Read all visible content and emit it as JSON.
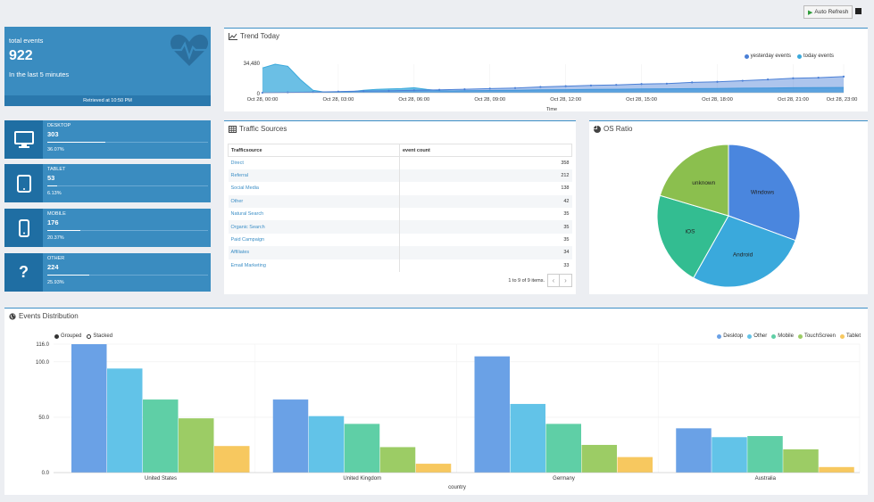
{
  "toolbar": {
    "auto_refresh_label": "Auto Refresh"
  },
  "summary": {
    "title": "total events",
    "value": "922",
    "subtitle": "In the last 5 minutes",
    "retrieved": "Retrieved at 10:50 PM"
  },
  "devices": [
    {
      "label": "DESKTOP",
      "value": "303",
      "percent_label": "36.07%",
      "fraction": 0.3607,
      "icon": "desktop-icon"
    },
    {
      "label": "TABLET",
      "value": "53",
      "percent_label": "6.13%",
      "fraction": 0.0613,
      "icon": "tablet-icon"
    },
    {
      "label": "MOBILE",
      "value": "176",
      "percent_label": "20.37%",
      "fraction": 0.2037,
      "icon": "mobile-icon"
    },
    {
      "label": "OTHER",
      "value": "224",
      "percent_label": "25.93%",
      "fraction": 0.2593,
      "icon": "question-icon"
    }
  ],
  "trend": {
    "title": "Trend Today",
    "legend": [
      "yesterday events",
      "today events"
    ],
    "y_tick": "34,480",
    "y_zero": "0",
    "x_label": "Time",
    "x_ticks": [
      "Oct 28, 00:00",
      "Oct 28, 03:00",
      "Oct 28, 06:00",
      "Oct 28, 09:00",
      "Oct 28, 12:00",
      "Oct 28, 15:00",
      "Oct 28, 18:00",
      "Oct 28, 21:00",
      "Oct 28, 23:00"
    ]
  },
  "traffic": {
    "title": "Traffic Sources",
    "headers": [
      "Trafficsource",
      "event count"
    ],
    "rows": [
      {
        "source": "Direct",
        "count": "358"
      },
      {
        "source": "Referral",
        "count": "212"
      },
      {
        "source": "Social Media",
        "count": "138"
      },
      {
        "source": "Other",
        "count": "42"
      },
      {
        "source": "Natural Search",
        "count": "35"
      },
      {
        "source": "Organic Search",
        "count": "35"
      },
      {
        "source": "Paid Campaign",
        "count": "35"
      },
      {
        "source": "Affiliates",
        "count": "34"
      },
      {
        "source": "Email Marketing",
        "count": "33"
      }
    ],
    "pagination": "1 to 9 of 9 items.",
    "prev": "‹",
    "next": "›"
  },
  "os": {
    "title": "OS Ratio"
  },
  "distribution": {
    "title": "Events Distribution",
    "modes": [
      "Grouped",
      "Stacked"
    ],
    "x_label": "country"
  },
  "colors": {
    "accent": "#3d8fc6",
    "tile": "#3a8cc0",
    "tile_dark": "#1f6ea3",
    "desktop": "#6aa1e6",
    "other": "#62c3e8",
    "mobile": "#5fcfa6",
    "touchscreen": "#9ccc65",
    "tablet": "#f7c85f"
  },
  "chart_data": [
    {
      "type": "area",
      "title": "Trend Today",
      "series": [
        {
          "name": "yesterday events",
          "x": [
            0,
            0.5,
            1,
            1.5,
            2,
            2.5,
            3,
            3.5,
            4,
            4.5,
            5,
            5.5,
            6,
            6.5,
            7,
            7.5,
            8,
            9,
            10,
            11,
            12,
            13,
            14,
            15,
            16,
            17,
            18,
            19,
            20,
            21,
            22,
            23
          ],
          "values": [
            30000,
            34480,
            32000,
            16000,
            3000,
            500,
            800,
            1200,
            3000,
            4000,
            4500,
            5000,
            6000,
            4000,
            2500,
            2200,
            2400,
            2700,
            3000,
            3400,
            3700,
            4000,
            4200,
            4500,
            4700,
            5000,
            5200,
            5500,
            5700,
            6000,
            6200,
            6400
          ]
        },
        {
          "name": "today events",
          "x": [
            0,
            1,
            2,
            3,
            4,
            5,
            6,
            7,
            8,
            9,
            10,
            11,
            12,
            13,
            14,
            15,
            16,
            17,
            18,
            19,
            20,
            21,
            22,
            23
          ],
          "values": [
            0,
            400,
            900,
            1400,
            2000,
            2300,
            3000,
            3500,
            4200,
            5000,
            5700,
            7000,
            8000,
            8800,
            9500,
            10500,
            11000,
            12500,
            13200,
            14500,
            16000,
            17500,
            18200,
            19500
          ]
        }
      ],
      "ylim": [
        0,
        34480
      ],
      "xlabel": "Time"
    },
    {
      "type": "pie",
      "title": "OS Ratio",
      "categories": [
        "Windows",
        "Android",
        "iOS",
        "unknown"
      ],
      "values": [
        30,
        27,
        21,
        20
      ],
      "colors": [
        "#4a86de",
        "#3aa9dc",
        "#33bd91",
        "#8bbf4e"
      ]
    },
    {
      "type": "bar",
      "title": "Events Distribution",
      "categories": [
        "United States",
        "United Kingdom",
        "Germany",
        "Australia"
      ],
      "series": [
        {
          "name": "Desktop",
          "values": [
            116,
            66,
            105,
            40
          ]
        },
        {
          "name": "Other",
          "values": [
            94,
            51,
            62,
            32
          ]
        },
        {
          "name": "Mobile",
          "values": [
            66,
            44,
            44,
            33
          ]
        },
        {
          "name": "TouchScreen",
          "values": [
            49,
            23,
            25,
            21
          ]
        },
        {
          "name": "Tablet",
          "values": [
            24,
            8,
            14,
            5
          ]
        }
      ],
      "ylim": [
        0,
        116
      ],
      "y_ticks": [
        "0.0",
        "50.0",
        "100.0",
        "116.0"
      ],
      "xlabel": "country"
    }
  ]
}
